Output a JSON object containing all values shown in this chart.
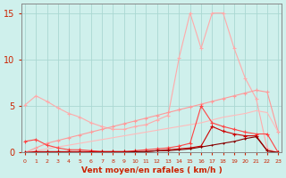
{
  "xlabel": "Vent moyen/en rafales ( km/h )",
  "x": [
    0,
    1,
    2,
    3,
    4,
    5,
    6,
    7,
    8,
    9,
    10,
    11,
    12,
    13,
    14,
    15,
    16,
    17,
    18,
    19,
    20,
    21,
    22,
    23
  ],
  "line1": [
    5.1,
    6.1,
    5.5,
    4.8,
    4.2,
    3.8,
    3.2,
    2.8,
    2.5,
    2.5,
    2.8,
    3.0,
    3.5,
    4.0,
    10.2,
    15.0,
    11.2,
    15.0,
    15.0,
    11.2,
    8.0,
    5.8,
    0.4,
    0.0
  ],
  "line2": [
    0.0,
    0.5,
    1.0,
    1.3,
    1.6,
    1.9,
    2.2,
    2.5,
    2.8,
    3.1,
    3.4,
    3.7,
    4.0,
    4.3,
    4.6,
    4.9,
    5.2,
    5.5,
    5.8,
    6.1,
    6.4,
    6.7,
    6.5,
    2.2
  ],
  "line3": [
    0.0,
    0.2,
    0.4,
    0.6,
    0.8,
    1.0,
    1.2,
    1.4,
    1.6,
    1.8,
    2.0,
    2.2,
    2.4,
    2.6,
    2.8,
    3.0,
    3.2,
    3.5,
    3.8,
    4.0,
    4.2,
    4.5,
    4.3,
    2.2
  ],
  "line4": [
    1.2,
    1.4,
    0.8,
    0.5,
    0.3,
    0.3,
    0.2,
    0.1,
    0.1,
    0.1,
    0.2,
    0.3,
    0.4,
    0.5,
    0.7,
    1.0,
    5.0,
    3.2,
    2.8,
    2.5,
    2.2,
    2.0,
    2.0,
    0.0
  ],
  "line5": [
    0.0,
    0.1,
    0.1,
    0.1,
    0.1,
    0.1,
    0.1,
    0.1,
    0.1,
    0.1,
    0.1,
    0.1,
    0.2,
    0.3,
    0.4,
    0.5,
    0.7,
    2.8,
    2.3,
    2.0,
    1.8,
    1.8,
    0.2,
    0.0
  ],
  "line6": [
    0.0,
    0.0,
    0.0,
    0.0,
    0.0,
    0.0,
    0.0,
    0.0,
    0.0,
    0.0,
    0.1,
    0.1,
    0.2,
    0.2,
    0.3,
    0.4,
    0.6,
    0.8,
    1.0,
    1.2,
    1.5,
    1.7,
    0.2,
    0.0
  ],
  "bg_color": "#cff0ec",
  "grid_color": "#aad8d2",
  "line1_color": "#ffaaaa",
  "line2_color": "#ff9999",
  "line3_color": "#ffbbbb",
  "line4_color": "#ff4444",
  "line5_color": "#cc0000",
  "line6_color": "#880000",
  "axis_color": "#888888",
  "tick_color": "#cc2200",
  "label_color": "#cc2200",
  "ylim": [
    0,
    16
  ],
  "yticks": [
    0,
    5,
    10,
    15
  ],
  "xlim": [
    -0.3,
    23.3
  ]
}
